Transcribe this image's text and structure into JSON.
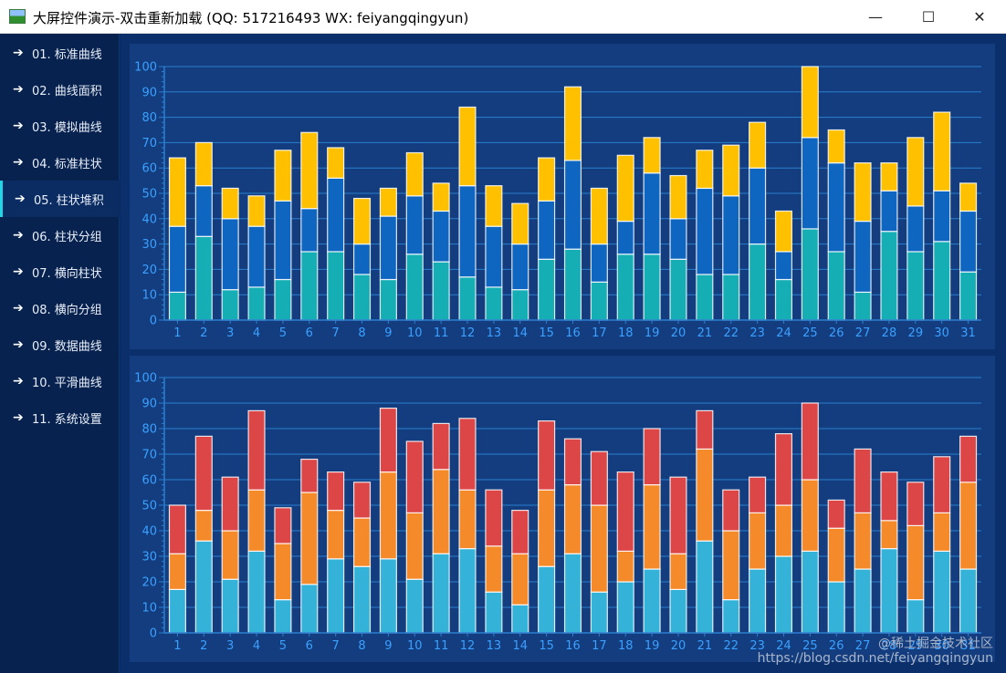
{
  "window": {
    "title": "大屏控件演示-双击重新加载 (QQ: 517216493  WX: feiyangqingyun)",
    "minimize_glyph": "—",
    "maximize_glyph": "☐",
    "close_glyph": "✕"
  },
  "sidebar": {
    "arrow_glyph": "➔",
    "active_index": 4,
    "items": [
      {
        "label": "01. 标准曲线"
      },
      {
        "label": "02. 曲线面积"
      },
      {
        "label": "03. 模拟曲线"
      },
      {
        "label": "04. 标准柱状"
      },
      {
        "label": "05. 柱状堆积"
      },
      {
        "label": "06. 柱状分组"
      },
      {
        "label": "07. 横向柱状"
      },
      {
        "label": "08. 横向分组"
      },
      {
        "label": "09. 数据曲线"
      },
      {
        "label": "10. 平滑曲线"
      },
      {
        "label": "11. 系统设置"
      }
    ]
  },
  "watermark": {
    "line1": "@稀土掘金技术社区",
    "line2": "https://blog.csdn.net/feiyangqingyun"
  },
  "colors": {
    "background": "#0a2f6b",
    "panel": "#133d7e",
    "grid": "#2a7fd0",
    "tick_text": "#3ba0ff"
  },
  "chart_data": [
    {
      "type": "bar",
      "stacked": true,
      "categories": [
        "1",
        "2",
        "3",
        "4",
        "5",
        "6",
        "7",
        "8",
        "9",
        "10",
        "11",
        "12",
        "13",
        "14",
        "15",
        "16",
        "17",
        "18",
        "19",
        "20",
        "21",
        "22",
        "23",
        "24",
        "25",
        "26",
        "27",
        "28",
        "29",
        "30",
        "31"
      ],
      "ylim": [
        0,
        100
      ],
      "yticks": [
        0,
        10,
        20,
        30,
        40,
        50,
        60,
        70,
        80,
        90,
        100
      ],
      "grid": true,
      "series": [
        {
          "color": "#14aeb4",
          "values": [
            11,
            33,
            12,
            13,
            16,
            27,
            27,
            18,
            16,
            26,
            23,
            17,
            13,
            12,
            24,
            28,
            15,
            26,
            26,
            24,
            18,
            18,
            30,
            16,
            36,
            27,
            11,
            35,
            27,
            31,
            19
          ]
        },
        {
          "color": "#0f66c0",
          "values": [
            26,
            20,
            28,
            24,
            31,
            17,
            29,
            12,
            25,
            23,
            20,
            36,
            24,
            18,
            23,
            35,
            15,
            13,
            32,
            16,
            34,
            31,
            30,
            11,
            36,
            35,
            28,
            16,
            18,
            20,
            24
          ]
        },
        {
          "color": "#ffc000",
          "values": [
            27,
            17,
            12,
            12,
            20,
            30,
            12,
            18,
            11,
            17,
            11,
            31,
            16,
            16,
            17,
            29,
            22,
            26,
            14,
            17,
            15,
            20,
            18,
            16,
            28,
            13,
            23,
            11,
            27,
            31,
            11
          ]
        }
      ]
    },
    {
      "type": "bar",
      "stacked": true,
      "categories": [
        "1",
        "2",
        "3",
        "4",
        "5",
        "6",
        "7",
        "8",
        "9",
        "10",
        "11",
        "12",
        "13",
        "14",
        "15",
        "16",
        "17",
        "18",
        "19",
        "20",
        "21",
        "22",
        "23",
        "24",
        "25",
        "26",
        "27",
        "28",
        "29",
        "30",
        "31"
      ],
      "ylim": [
        0,
        100
      ],
      "yticks": [
        0,
        10,
        20,
        30,
        40,
        50,
        60,
        70,
        80,
        90,
        100
      ],
      "grid": true,
      "series": [
        {
          "color": "#34b2d8",
          "values": [
            17,
            36,
            21,
            32,
            13,
            19,
            29,
            26,
            29,
            21,
            31,
            33,
            16,
            11,
            26,
            31,
            16,
            20,
            25,
            17,
            36,
            13,
            25,
            30,
            32,
            20,
            25,
            33,
            13,
            32,
            25
          ]
        },
        {
          "color": "#f58a2a",
          "values": [
            14,
            12,
            19,
            24,
            22,
            36,
            19,
            19,
            34,
            26,
            33,
            23,
            18,
            20,
            30,
            27,
            34,
            12,
            33,
            14,
            36,
            27,
            22,
            20,
            28,
            21,
            22,
            11,
            29,
            15,
            34
          ]
        },
        {
          "color": "#dd4646",
          "values": [
            19,
            29,
            21,
            31,
            14,
            13,
            15,
            14,
            25,
            28,
            18,
            28,
            22,
            17,
            27,
            18,
            21,
            31,
            22,
            30,
            15,
            16,
            14,
            28,
            30,
            11,
            25,
            19,
            17,
            22,
            18
          ]
        }
      ]
    }
  ]
}
